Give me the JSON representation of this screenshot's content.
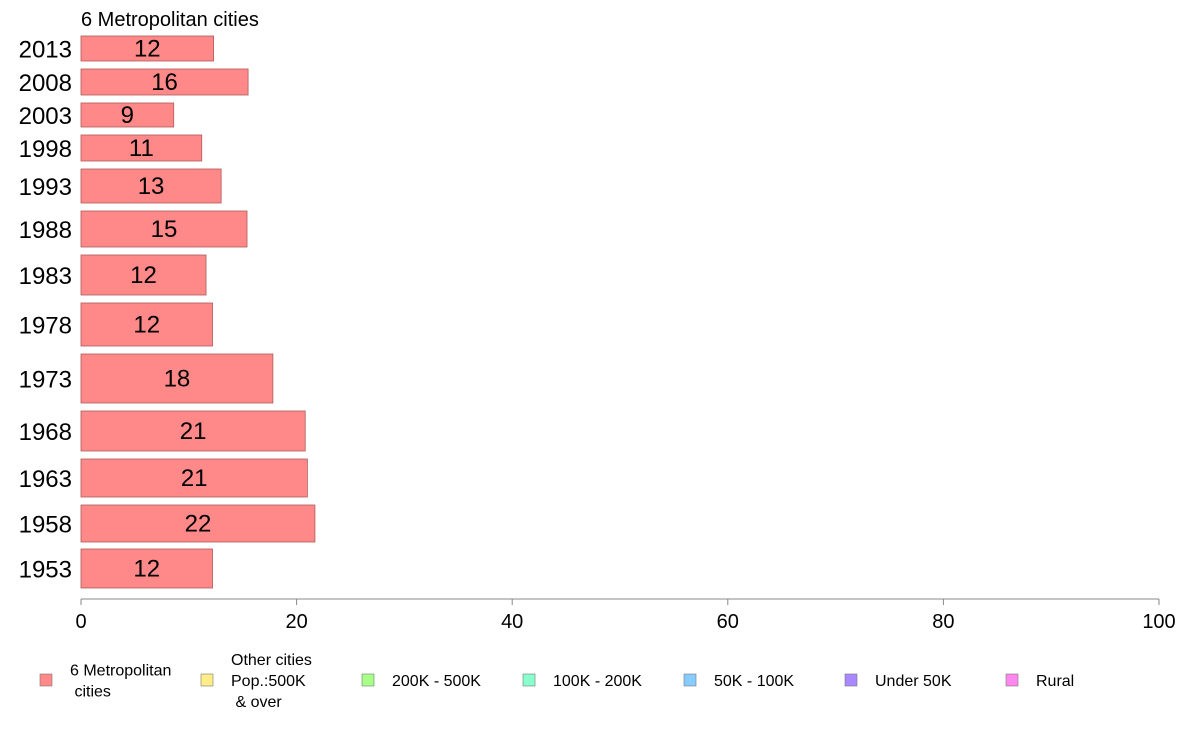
{
  "chart_data": {
    "type": "bar",
    "orientation": "horizontal",
    "title": "6 Metropolitan cities",
    "categories": [
      "2013",
      "2008",
      "2003",
      "1998",
      "1993",
      "1988",
      "1983",
      "1978",
      "1973",
      "1968",
      "1963",
      "1958",
      "1953"
    ],
    "series": [
      {
        "name": "6 Metropolitan cities",
        "color": "#ff8888",
        "values": [
          12.3,
          15.5,
          8.6,
          11.2,
          13.0,
          15.4,
          11.6,
          12.2,
          17.8,
          20.8,
          21.0,
          21.7,
          12.2
        ],
        "labels": [
          "12",
          "16",
          "9",
          "11",
          "13",
          "15",
          "12",
          "12",
          "18",
          "21",
          "21",
          "22",
          "12"
        ]
      }
    ],
    "xlim": [
      0,
      100
    ],
    "xticks": [
      "0",
      "20",
      "40",
      "60",
      "80",
      "100"
    ],
    "grid": false,
    "legend_position": "bottom",
    "legend": [
      {
        "label": "6 Metropolitan\n cities",
        "color": "#ff8888"
      },
      {
        "label": "Other cities\nPop.:500K\n & over",
        "color": "#ffee88"
      },
      {
        "label": "200K - 500K",
        "color": "#a8ff88"
      },
      {
        "label": "100K - 200K",
        "color": "#88ffcc"
      },
      {
        "label": "50K - 100K",
        "color": "#88ccff"
      },
      {
        "label": "Under 50K",
        "color": "#aa88ff"
      },
      {
        "label": "Rural",
        "color": "#ff88ee"
      }
    ]
  }
}
